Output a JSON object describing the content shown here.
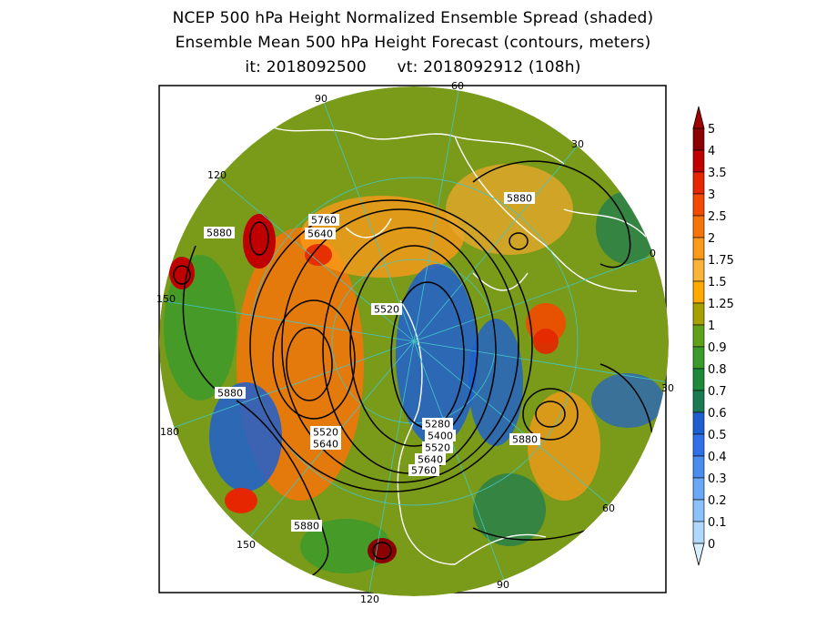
{
  "title": {
    "line1": "NCEP 500 hPa Height Normalized Ensemble Spread (shaded)",
    "line2": "Ensemble Mean 500 hPa Height Forecast (contours, meters)",
    "line3": "it: 2018092500      vt: 2018092912 (108h)"
  },
  "longitude_labels": [
    "60",
    "30",
    "0",
    "30",
    "60",
    "90",
    "120",
    "150",
    "180",
    "150",
    "120",
    "90"
  ],
  "contour_labels": [
    "5880",
    "5760",
    "5640",
    "5520",
    "5880",
    "5880",
    "5520",
    "5640",
    "5280",
    "5400",
    "5520",
    "5640",
    "5760",
    "5880",
    "5880"
  ],
  "colorbar": {
    "labels": [
      "5",
      "4",
      "3.5",
      "3",
      "2.5",
      "2",
      "1.75",
      "1.5",
      "1.25",
      "1",
      "0.9",
      "0.8",
      "0.7",
      "0.6",
      "0.5",
      "0.4",
      "0.3",
      "0.2",
      "0.1",
      "0"
    ],
    "colors": [
      "#8b0000",
      "#c00000",
      "#e52600",
      "#f24a00",
      "#f7740a",
      "#f99a1a",
      "#fbb43a",
      "#ffa800",
      "#a6a000",
      "#5fa21a",
      "#3a9a2a",
      "#1e8a3a",
      "#1a7a52",
      "#1e5fd0",
      "#3070e8",
      "#4a8cf0",
      "#6aa8f6",
      "#8cc2fa",
      "#aed8fc",
      "#d6eefe"
    ]
  }
}
